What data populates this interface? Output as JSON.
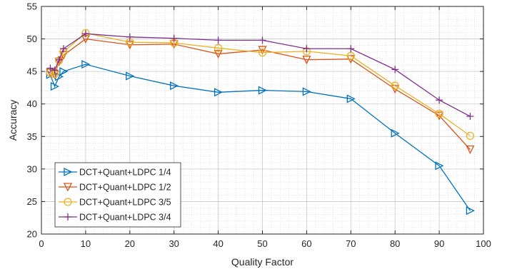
{
  "chart_data": {
    "type": "line",
    "xlabel": "Quality Factor",
    "ylabel": "Accuracy",
    "xlim": [
      0,
      100
    ],
    "ylim": [
      20,
      55
    ],
    "xticks": [
      0,
      10,
      20,
      30,
      40,
      50,
      60,
      70,
      80,
      90,
      100
    ],
    "yticks": [
      20,
      25,
      30,
      35,
      40,
      45,
      50,
      55
    ],
    "grid": true,
    "minor_grid": true,
    "legend_position": "bottom-left",
    "series": [
      {
        "name": "DCT+Quant+LDPC 1/4",
        "color": "#0072BD",
        "marker": "triangle-right",
        "x": [
          2,
          3,
          4,
          5,
          10,
          20,
          30,
          40,
          50,
          60,
          70,
          80,
          90,
          97
        ],
        "y": [
          44.5,
          42.7,
          44.2,
          45.0,
          46.1,
          44.3,
          42.8,
          41.8,
          42.1,
          41.9,
          40.8,
          35.5,
          30.5,
          23.6
        ]
      },
      {
        "name": "DCT+Quant+LDPC 1/2",
        "color": "#D95319",
        "marker": "triangle-down",
        "x": [
          2,
          3,
          4,
          5,
          10,
          20,
          30,
          40,
          50,
          60,
          70,
          80,
          90,
          97
        ],
        "y": [
          44.8,
          44.5,
          46.5,
          47.5,
          50.0,
          49.1,
          49.2,
          47.7,
          48.3,
          46.8,
          46.9,
          42.3,
          38.2,
          33.0
        ]
      },
      {
        "name": "DCT+Quant+LDPC 3/5",
        "color": "#EDB120",
        "marker": "circle",
        "x": [
          2,
          3,
          4,
          5,
          10,
          20,
          30,
          40,
          50,
          60,
          70,
          80,
          90,
          97
        ],
        "y": [
          44.8,
          44.6,
          46.7,
          48.0,
          50.9,
          49.5,
          49.4,
          48.6,
          47.9,
          48.1,
          47.4,
          42.8,
          38.5,
          35.1
        ]
      },
      {
        "name": "DCT+Quant+LDPC 3/4",
        "color": "#7E2F8E",
        "marker": "plus",
        "x": [
          2,
          3,
          4,
          5,
          10,
          20,
          30,
          40,
          50,
          60,
          70,
          80,
          90,
          97
        ],
        "y": [
          45.5,
          45.2,
          46.8,
          48.5,
          50.8,
          50.3,
          50.1,
          49.8,
          49.8,
          48.5,
          48.5,
          45.3,
          40.6,
          38.1
        ]
      }
    ]
  }
}
